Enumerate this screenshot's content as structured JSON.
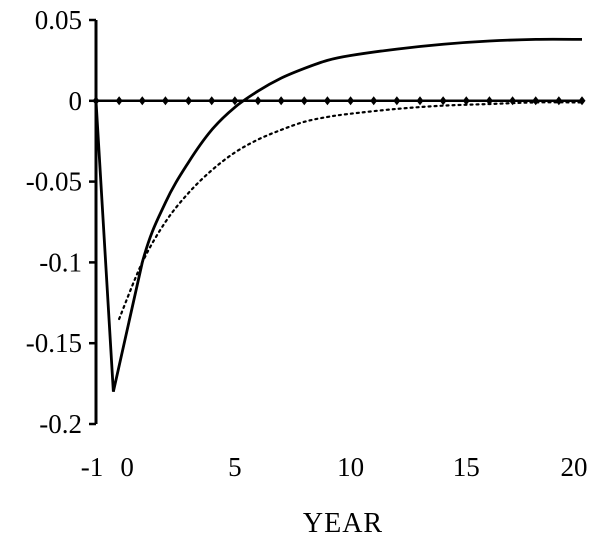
{
  "chart_data": {
    "type": "line",
    "title": "",
    "xlabel": "YEAR",
    "ylabel": "",
    "xlim": [
      -1,
      20
    ],
    "ylim": [
      -0.2,
      0.05
    ],
    "grid": false,
    "x_ticks": [
      -1,
      0,
      5,
      10,
      15,
      20
    ],
    "x_tick_labels": [
      "-1",
      "0",
      "5",
      "10",
      "15",
      "20"
    ],
    "y_ticks": [
      0.05,
      0,
      -0.05,
      -0.1,
      -0.15,
      -0.2
    ],
    "y_tick_labels": [
      "0.05",
      "0",
      "-0.05",
      "-0.1",
      "-0.15",
      "-0.2"
    ],
    "series": [
      {
        "style": "solid",
        "x": [
          -1,
          -0.25,
          1,
          2,
          3,
          4,
          5,
          6,
          7,
          8,
          9,
          10,
          12,
          14,
          16,
          18,
          20
        ],
        "y": [
          0,
          -0.18,
          -0.1,
          -0.063,
          -0.038,
          -0.018,
          -0.004,
          0.006,
          0.014,
          0.02,
          0.025,
          0.028,
          0.032,
          0.035,
          0.037,
          0.038,
          0.038
        ]
      },
      {
        "style": "dotted",
        "x": [
          0,
          1,
          2,
          3,
          4,
          5,
          6,
          7,
          8,
          9,
          10,
          12,
          14,
          16,
          18,
          20
        ],
        "y": [
          -0.135,
          -0.1,
          -0.075,
          -0.057,
          -0.043,
          -0.032,
          -0.024,
          -0.018,
          -0.013,
          -0.01,
          -0.008,
          -0.005,
          -0.003,
          -0.002,
          -0.001,
          -0.001
        ]
      },
      {
        "style": "diamond-markers",
        "x": [
          -1,
          0,
          1,
          2,
          3,
          4,
          5,
          6,
          7,
          8,
          9,
          10,
          11,
          12,
          13,
          14,
          15,
          16,
          17,
          18,
          19,
          20
        ],
        "y": [
          0,
          0,
          0,
          0,
          0,
          0,
          0,
          0,
          0,
          0,
          0,
          0,
          0,
          0,
          0,
          0,
          0,
          0,
          0,
          0,
          0,
          0
        ]
      }
    ]
  }
}
